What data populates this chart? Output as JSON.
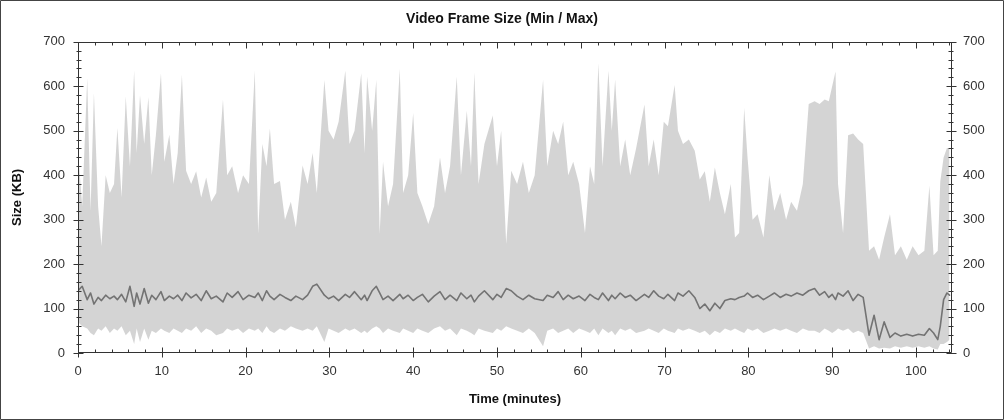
{
  "chart_data": {
    "type": "line",
    "title": "Video Frame Size (Min / Max)",
    "xlabel": "Time (minutes)",
    "ylabel": "Size (KB)",
    "xlim": [
      0,
      104.3
    ],
    "ylim": [
      0,
      700
    ],
    "y2lim": [
      0,
      700
    ],
    "xticks": [
      0,
      {
        "value": 2,
        "label": null
      },
      {
        "value": 4,
        "label": null
      },
      {
        "value": 6,
        "label": null
      },
      {
        "value": 8,
        "label": null
      },
      10,
      {
        "value": 12,
        "label": null
      },
      {
        "value": 14,
        "label": null
      },
      {
        "value": 16,
        "label": null
      },
      {
        "value": 18,
        "label": null
      },
      20,
      {
        "value": 22,
        "label": null
      },
      {
        "value": 24,
        "label": null
      },
      {
        "value": 26,
        "label": null
      },
      {
        "value": 28,
        "label": null
      },
      30,
      {
        "value": 32,
        "label": null
      },
      {
        "value": 34,
        "label": null
      },
      {
        "value": 36,
        "label": null
      },
      {
        "value": 38,
        "label": null
      },
      40,
      {
        "value": 42,
        "label": null
      },
      {
        "value": 44,
        "label": null
      },
      {
        "value": 46,
        "label": null
      },
      {
        "value": 48,
        "label": null
      },
      50,
      {
        "value": 52,
        "label": null
      },
      {
        "value": 54,
        "label": null
      },
      {
        "value": 56,
        "label": null
      },
      {
        "value": 58,
        "label": null
      },
      60,
      {
        "value": 62,
        "label": null
      },
      {
        "value": 64,
        "label": null
      },
      {
        "value": 66,
        "label": null
      },
      {
        "value": 68,
        "label": null
      },
      70,
      {
        "value": 72,
        "label": null
      },
      {
        "value": 74,
        "label": null
      },
      {
        "value": 76,
        "label": null
      },
      {
        "value": 78,
        "label": null
      },
      80,
      {
        "value": 82,
        "label": null
      },
      {
        "value": 84,
        "label": null
      },
      {
        "value": 86,
        "label": null
      },
      {
        "value": 88,
        "label": null
      },
      90,
      {
        "value": 92,
        "label": null
      },
      {
        "value": 94,
        "label": null
      },
      {
        "value": 96,
        "label": null
      },
      {
        "value": 98,
        "label": null
      },
      100,
      {
        "value": 102,
        "label": null
      },
      {
        "value": 104,
        "label": null
      }
    ],
    "yticks": [
      0,
      {
        "value": 20,
        "label": null
      },
      {
        "value": 40,
        "label": null
      },
      {
        "value": 60,
        "label": null
      },
      {
        "value": 80,
        "label": null
      },
      100,
      {
        "value": 120,
        "label": null
      },
      {
        "value": 140,
        "label": null
      },
      {
        "value": 160,
        "label": null
      },
      {
        "value": 180,
        "label": null
      },
      200,
      {
        "value": 220,
        "label": null
      },
      {
        "value": 240,
        "label": null
      },
      {
        "value": 260,
        "label": null
      },
      {
        "value": 280,
        "label": null
      },
      300,
      {
        "value": 320,
        "label": null
      },
      {
        "value": 340,
        "label": null
      },
      {
        "value": 360,
        "label": null
      },
      {
        "value": 380,
        "label": null
      },
      400,
      {
        "value": 420,
        "label": null
      },
      {
        "value": 440,
        "label": null
      },
      {
        "value": 460,
        "label": null
      },
      {
        "value": 480,
        "label": null
      },
      500,
      {
        "value": 520,
        "label": null
      },
      {
        "value": 540,
        "label": null
      },
      {
        "value": 560,
        "label": null
      },
      {
        "value": 580,
        "label": null
      },
      600,
      {
        "value": 620,
        "label": null
      },
      {
        "value": 640,
        "label": null
      },
      {
        "value": 660,
        "label": null
      },
      {
        "value": 680,
        "label": null
      },
      700
    ],
    "y2ticks": [
      0,
      {
        "value": 20,
        "label": null
      },
      {
        "value": 40,
        "label": null
      },
      {
        "value": 60,
        "label": null
      },
      {
        "value": 80,
        "label": null
      },
      100,
      {
        "value": 120,
        "label": null
      },
      {
        "value": 140,
        "label": null
      },
      {
        "value": 160,
        "label": null
      },
      {
        "value": 180,
        "label": null
      },
      200,
      {
        "value": 220,
        "label": null
      },
      {
        "value": 240,
        "label": null
      },
      {
        "value": 260,
        "label": null
      },
      {
        "value": 280,
        "label": null
      },
      300,
      {
        "value": 320,
        "label": null
      },
      {
        "value": 340,
        "label": null
      },
      {
        "value": 360,
        "label": null
      },
      {
        "value": 380,
        "label": null
      },
      400,
      {
        "value": 420,
        "label": null
      },
      {
        "value": 440,
        "label": null
      },
      {
        "value": 460,
        "label": null
      },
      {
        "value": 480,
        "label": null
      },
      500,
      {
        "value": 520,
        "label": null
      },
      {
        "value": 540,
        "label": null
      },
      {
        "value": 560,
        "label": null
      },
      {
        "value": 580,
        "label": null
      },
      600,
      {
        "value": 620,
        "label": null
      },
      {
        "value": 640,
        "label": null
      },
      {
        "value": 660,
        "label": null
      },
      {
        "value": 680,
        "label": null
      },
      700
    ],
    "x": [
      0.0,
      0.5,
      1.1,
      1.5,
      1.9,
      2.4,
      2.8,
      3.3,
      3.8,
      4.3,
      4.7,
      5.2,
      5.7,
      6.2,
      6.7,
      7.0,
      7.4,
      7.9,
      8.4,
      8.8,
      9.3,
      9.9,
      10.3,
      10.9,
      11.4,
      11.9,
      12.4,
      12.9,
      13.5,
      14.1,
      14.7,
      15.3,
      15.9,
      16.5,
      17.3,
      17.8,
      18.4,
      19.1,
      19.7,
      20.4,
      21.1,
      21.5,
      22.0,
      22.5,
      22.9,
      23.4,
      24.1,
      24.7,
      25.4,
      26.0,
      26.8,
      27.4,
      28.0,
      28.5,
      29.4,
      29.9,
      30.5,
      31.1,
      31.9,
      32.4,
      33.0,
      33.8,
      34.2,
      34.5,
      35.1,
      35.6,
      36.0,
      36.4,
      37.0,
      37.6,
      38.4,
      38.8,
      39.4,
      40.0,
      40.5,
      41.1,
      41.8,
      42.5,
      43.2,
      43.8,
      44.4,
      45.2,
      45.7,
      46.4,
      46.9,
      47.3,
      47.8,
      48.5,
      49.5,
      50.0,
      50.5,
      51.1,
      51.7,
      52.4,
      53.1,
      53.8,
      54.5,
      55.5,
      56.0,
      56.7,
      57.3,
      57.9,
      58.5,
      59.1,
      59.8,
      60.5,
      61.1,
      61.6,
      62.1,
      62.6,
      63.3,
      63.7,
      64.1,
      64.7,
      65.3,
      65.9,
      66.6,
      67.6,
      68.1,
      68.7,
      69.3,
      69.9,
      70.4,
      71.2,
      71.6,
      72.2,
      72.9,
      73.6,
      74.2,
      74.8,
      75.4,
      76.0,
      76.6,
      77.2,
      77.9,
      78.4,
      78.9,
      79.5,
      79.9,
      80.5,
      81.1,
      81.8,
      82.5,
      83.1,
      83.8,
      84.5,
      85.1,
      85.8,
      86.5,
      87.2,
      87.9,
      88.5,
      89.1,
      89.6,
      90.0,
      90.4,
      90.7,
      91.3,
      91.9,
      92.5,
      93.1,
      93.7,
      94.4,
      95.0,
      95.6,
      96.2,
      96.9,
      97.5,
      98.2,
      98.9,
      99.6,
      100.3,
      101.0,
      101.6,
      102.1,
      102.6,
      102.9,
      103.3,
      103.7,
      104.0
    ],
    "series": [
      {
        "color": "#737373",
        "values": [
          140,
          150,
          120,
          135,
          110,
          125,
          118,
          130,
          122,
          128,
          120,
          132,
          115,
          150,
          105,
          135,
          110,
          145,
          112,
          130,
          120,
          138,
          118,
          128,
          122,
          130,
          118,
          135,
          124,
          132,
          118,
          140,
          122,
          128,
          115,
          135,
          125,
          138,
          120,
          130,
          125,
          135,
          118,
          140,
          128,
          120,
          132,
          125,
          118,
          128,
          120,
          130,
          150,
          155,
          130,
          122,
          128,
          118,
          132,
          125,
          138,
          120,
          130,
          118,
          140,
          150,
          135,
          120,
          128,
          118,
          132,
          122,
          130,
          118,
          125,
          132,
          115,
          128,
          138,
          120,
          130,
          118,
          135,
          122,
          130,
          115,
          128,
          140,
          120,
          132,
          125,
          145,
          140,
          128,
          120,
          130,
          122,
          118,
          130,
          125,
          138,
          120,
          130,
          122,
          128,
          118,
          132,
          125,
          120,
          135,
          118,
          130,
          122,
          135,
          125,
          130,
          118,
          132,
          125,
          140,
          128,
          122,
          132,
          118,
          135,
          128,
          140,
          125,
          100,
          110,
          95,
          112,
          100,
          118,
          122,
          120,
          125,
          128,
          135,
          125,
          130,
          120,
          128,
          135,
          125,
          132,
          128,
          135,
          130,
          140,
          145,
          130,
          138,
          125,
          132,
          120,
          135,
          128,
          140,
          118,
          132,
          125,
          40,
          85,
          30,
          70,
          35,
          45,
          38,
          42,
          38,
          42,
          40,
          55,
          45,
          30,
          60,
          120,
          135,
          130
        ],
        "lower": [
          70,
          60,
          55,
          45,
          40,
          55,
          50,
          60,
          45,
          55,
          50,
          60,
          40,
          50,
          20,
          55,
          25,
          55,
          30,
          50,
          45,
          55,
          50,
          45,
          55,
          50,
          45,
          55,
          50,
          60,
          45,
          55,
          50,
          40,
          45,
          55,
          50,
          55,
          45,
          55,
          50,
          55,
          45,
          60,
          50,
          45,
          55,
          50,
          60,
          55,
          50,
          55,
          50,
          60,
          25,
          55,
          50,
          45,
          55,
          50,
          55,
          45,
          50,
          45,
          55,
          60,
          55,
          45,
          55,
          50,
          45,
          55,
          50,
          45,
          55,
          50,
          45,
          55,
          60,
          50,
          55,
          40,
          55,
          50,
          45,
          40,
          55,
          50,
          45,
          55,
          50,
          60,
          55,
          50,
          45,
          55,
          45,
          15,
          50,
          55,
          45,
          50,
          55,
          45,
          55,
          50,
          45,
          55,
          40,
          55,
          45,
          50,
          40,
          55,
          50,
          55,
          45,
          50,
          55,
          50,
          45,
          55,
          50,
          45,
          55,
          50,
          55,
          50,
          45,
          50,
          40,
          50,
          45,
          55,
          50,
          55,
          50,
          45,
          55,
          50,
          55,
          45,
          50,
          55,
          50,
          55,
          50,
          45,
          55,
          50,
          50,
          45,
          55,
          50,
          45,
          50,
          55,
          50,
          55,
          45,
          50,
          45,
          10,
          15,
          10,
          12,
          10,
          15,
          12,
          15,
          12,
          15,
          12,
          15,
          10,
          8,
          20,
          20,
          25,
          30
        ],
        "upper": [
          455,
          330,
          618,
          320,
          585,
          330,
          240,
          400,
          360,
          380,
          506,
          350,
          577,
          420,
          635,
          450,
          580,
          470,
          575,
          400,
          491,
          629,
          430,
          491,
          380,
          450,
          626,
          410,
          380,
          409,
          350,
          395,
          340,
          360,
          570,
          400,
          420,
          360,
          400,
          380,
          635,
          268,
          470,
          420,
          505,
          380,
          387,
          300,
          340,
          283,
          422,
          380,
          450,
          360,
          614,
          500,
          480,
          520,
          635,
          470,
          500,
          629,
          450,
          622,
          500,
          614,
          268,
          430,
          330,
          380,
          639,
          360,
          400,
          540,
          360,
          330,
          290,
          330,
          440,
          360,
          420,
          622,
          400,
          545,
          420,
          631,
          380,
          470,
          534,
          420,
          500,
          245,
          410,
          380,
          430,
          360,
          400,
          614,
          420,
          500,
          470,
          520,
          400,
          430,
          380,
          270,
          420,
          380,
          652,
          420,
          635,
          500,
          615,
          420,
          480,
          400,
          460,
          559,
          420,
          480,
          400,
          520,
          510,
          603,
          500,
          470,
          480,
          455,
          390,
          409,
          340,
          417,
          360,
          312,
          380,
          260,
          270,
          551,
          440,
          300,
          312,
          260,
          400,
          320,
          360,
          300,
          340,
          320,
          380,
          560,
          566,
          560,
          570,
          566,
          600,
          633,
          380,
          270,
          490,
          494,
          480,
          470,
          230,
          240,
          210,
          260,
          312,
          220,
          240,
          210,
          240,
          220,
          230,
          376,
          220,
          230,
          386,
          440,
          461,
          460
        ]
      }
    ]
  }
}
